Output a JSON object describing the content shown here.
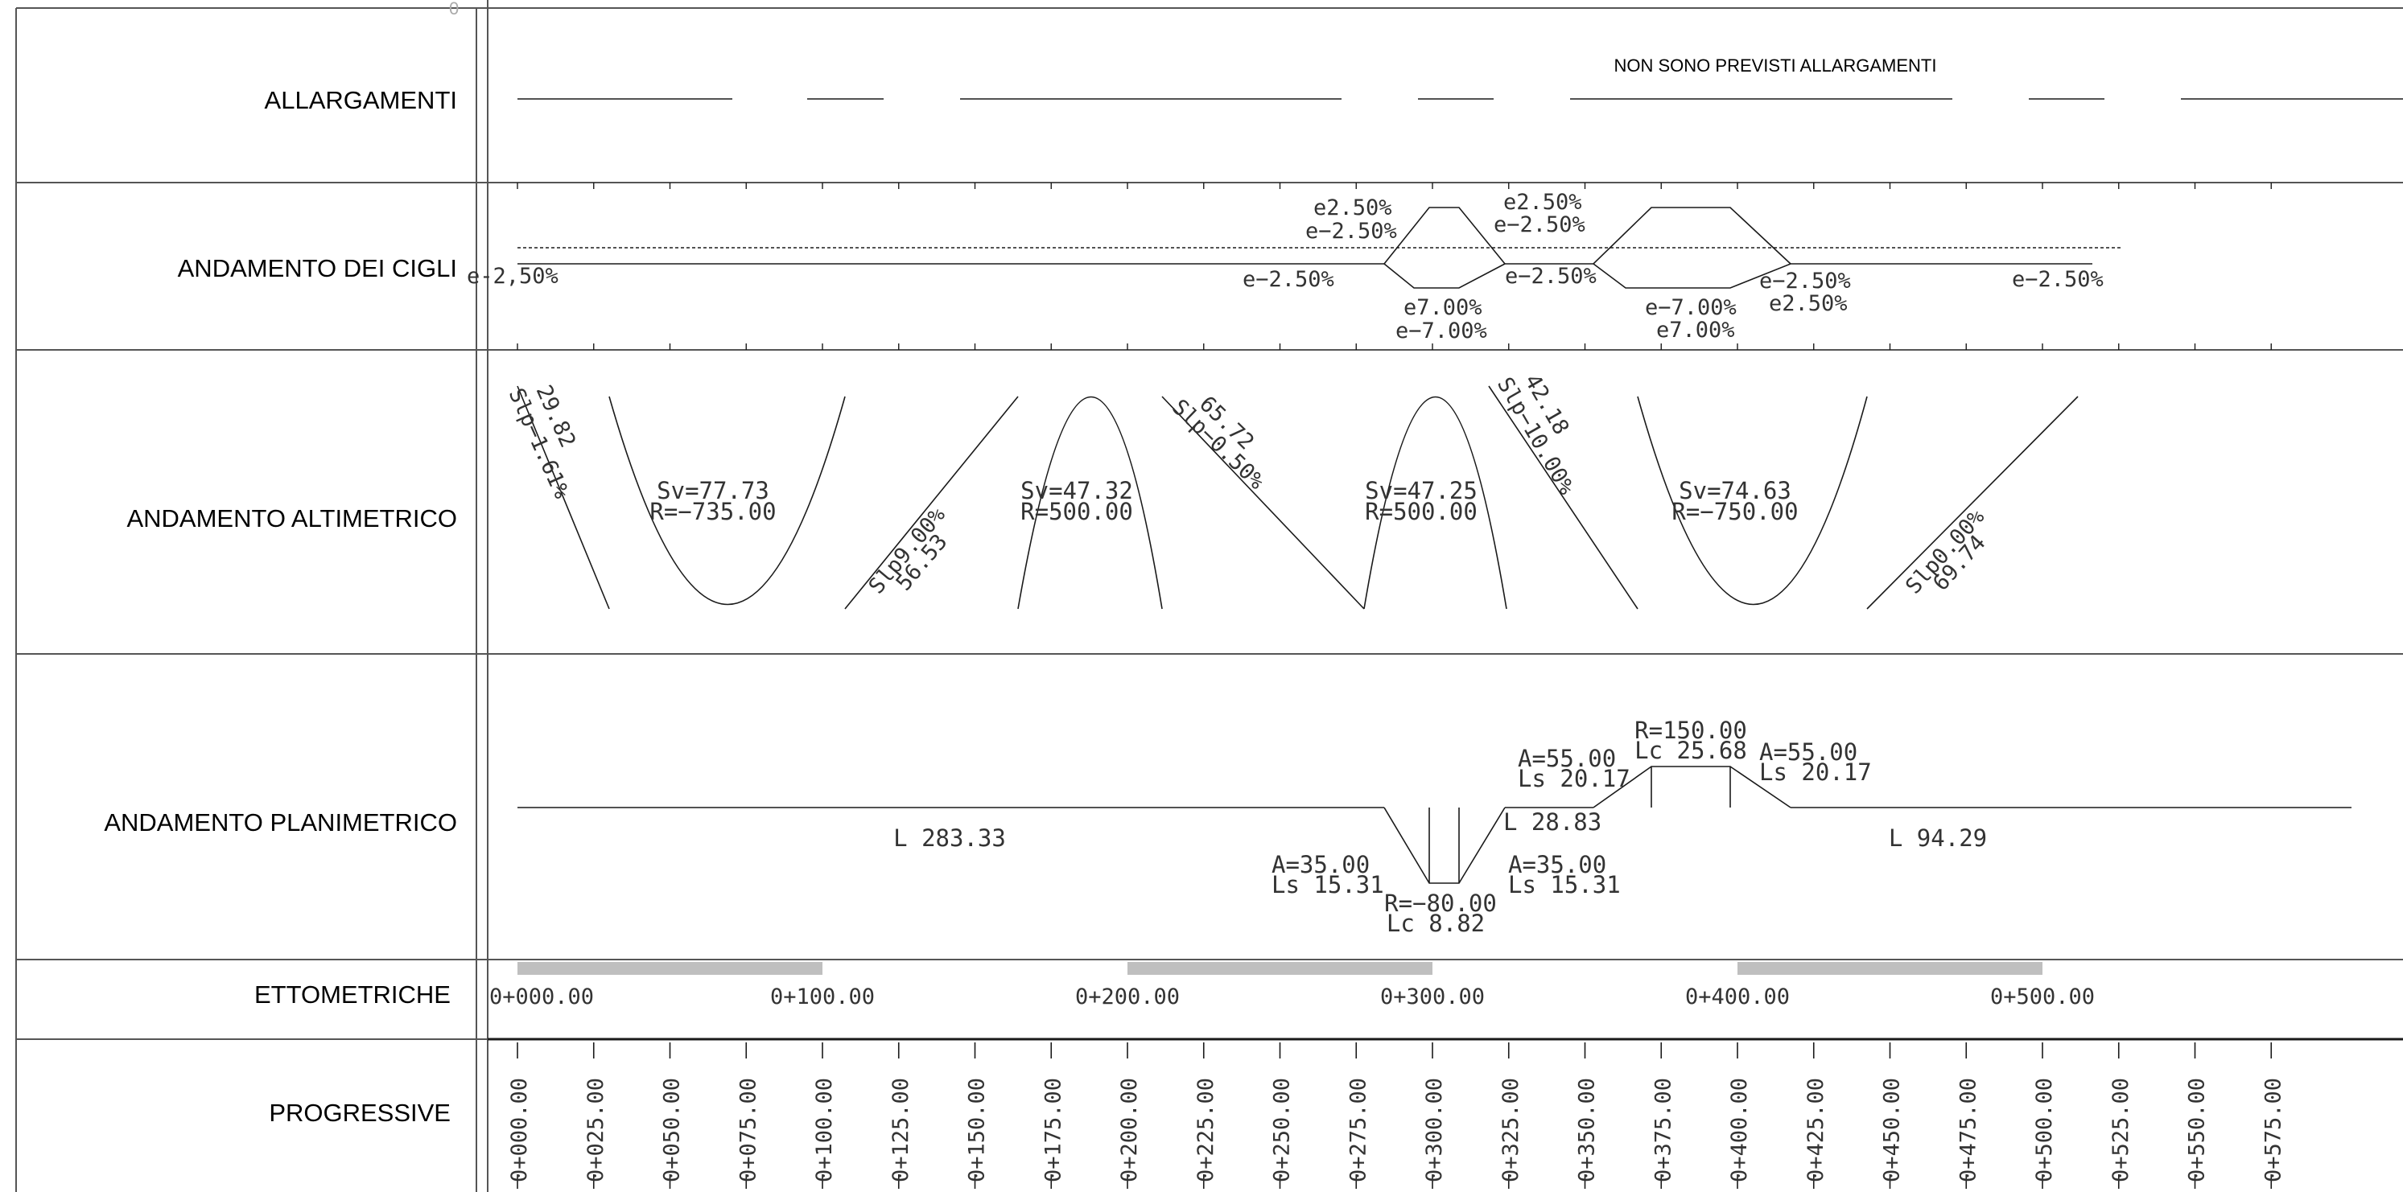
{
  "colors": {
    "line": "#1a1a1a",
    "text": "#333333",
    "band": "#bfbfbf",
    "border": "#555555"
  },
  "top_mark": "0",
  "rows": {
    "allargamenti": "ALLARGAMENTI",
    "cigli": "ANDAMENTO DEI CIGLI",
    "altimetrico": "ANDAMENTO ALTIMETRICO",
    "planimetrico": "ANDAMENTO PLANIMETRICO",
    "ettometriche": "ETTOMETRICHE",
    "progressive": "PROGRESSIVE"
  },
  "allargamenti_note": "NON SONO PREVISTI ALLARGAMENTI",
  "cigli_labels": [
    "e-2,50%",
    "e2.50%",
    "e−2.50%",
    "e−2.50%",
    "e7.00%",
    "e−7.00%",
    "e2.50%",
    "e−2.50%",
    "e−2.50%",
    "e−7.00%",
    "e7.00%",
    "e−2.50%",
    "e2.50%",
    "e−2.50%"
  ],
  "altimetrico": {
    "slopes": [
      {
        "length": "29.82",
        "grade": "Slp−1.61%"
      },
      {
        "length": "56.53",
        "grade": "Slp9.00%"
      },
      {
        "length": "65.72",
        "grade": "Slp−0.50%"
      },
      {
        "length": "42.18",
        "grade": "Slp−10.00%"
      },
      {
        "length": "69.74",
        "grade": "Slp0.00%"
      }
    ],
    "vertical_curves": [
      {
        "sv": "Sv=77.73",
        "r": "R=−735.00"
      },
      {
        "sv": "Sv=47.32",
        "r": "R=500.00"
      },
      {
        "sv": "Sv=47.25",
        "r": "R=500.00"
      },
      {
        "sv": "Sv=74.63",
        "r": "R=−750.00"
      }
    ]
  },
  "planimetrico": {
    "straights": [
      "L  283.33",
      "L  28.83",
      "L  94.29"
    ],
    "clothoids": [
      {
        "a": "A=35.00",
        "ls": "Ls  15.31"
      },
      {
        "a": "A=35.00",
        "ls": "Ls  15.31"
      },
      {
        "a": "A=55.00",
        "ls": "Ls  20.17"
      },
      {
        "a": "A=55.00",
        "ls": "Ls  20.17"
      }
    ],
    "arcs": [
      {
        "r": "R=−80.00",
        "lc": "Lc  8.82"
      },
      {
        "r": "R=150.00",
        "lc": "Lc  25.68"
      }
    ]
  },
  "ettometriche": [
    "0+000.00",
    "0+100.00",
    "0+200.00",
    "0+300.00",
    "0+400.00",
    "0+500.00"
  ],
  "progressive": [
    "0+000.00",
    "0+025.00",
    "0+050.00",
    "0+075.00",
    "0+100.00",
    "0+125.00",
    "0+150.00",
    "0+175.00",
    "0+200.00",
    "0+225.00",
    "0+250.00",
    "0+275.00",
    "0+300.00",
    "0+325.00",
    "0+350.00",
    "0+375.00",
    "0+400.00",
    "0+425.00",
    "0+450.00",
    "0+475.00",
    "0+500.00",
    "0+525.00",
    "0+550.00",
    "0+575.00"
  ]
}
